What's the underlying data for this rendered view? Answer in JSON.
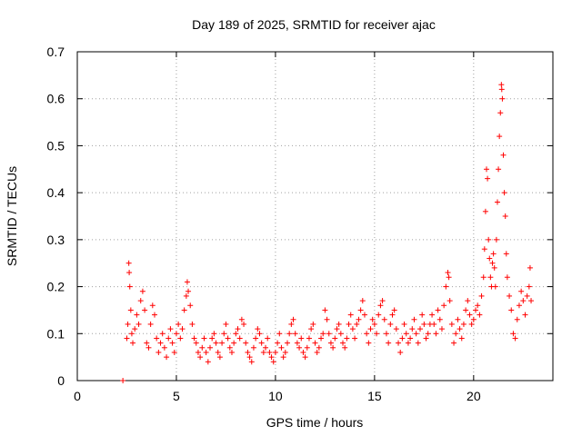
{
  "chart_data": {
    "type": "scatter",
    "title": "Day 189 of 2025, SRMTID for receiver ajac",
    "xlabel": "GPS time / hours",
    "ylabel": "SRMTID / TECUs",
    "xlim": [
      0,
      24
    ],
    "ylim": [
      0,
      0.7
    ],
    "xticks": [
      0,
      5,
      10,
      15,
      20
    ],
    "yticks": [
      0,
      0.1,
      0.2,
      0.3,
      0.4,
      0.5,
      0.6,
      0.7
    ],
    "xtick_labels": [
      "0",
      "5",
      "10",
      "15",
      "20"
    ],
    "ytick_labels": [
      "0",
      "0.1",
      "0.2",
      "0.3",
      "0.4",
      "0.5",
      "0.6",
      "0.7"
    ],
    "grid": true,
    "marker": "plus",
    "series": [
      {
        "name": "SRMTID",
        "color": "#ff0000",
        "points": [
          [
            2.3,
            0.0
          ],
          [
            2.5,
            0.09
          ],
          [
            2.55,
            0.12
          ],
          [
            2.6,
            0.25
          ],
          [
            2.62,
            0.23
          ],
          [
            2.65,
            0.2
          ],
          [
            2.7,
            0.15
          ],
          [
            2.75,
            0.1
          ],
          [
            2.8,
            0.08
          ],
          [
            2.9,
            0.11
          ],
          [
            3.0,
            0.14
          ],
          [
            3.1,
            0.12
          ],
          [
            3.2,
            0.17
          ],
          [
            3.3,
            0.19
          ],
          [
            3.4,
            0.15
          ],
          [
            3.5,
            0.08
          ],
          [
            3.6,
            0.07
          ],
          [
            3.7,
            0.12
          ],
          [
            3.8,
            0.16
          ],
          [
            3.9,
            0.14
          ],
          [
            4.0,
            0.09
          ],
          [
            4.1,
            0.06
          ],
          [
            4.2,
            0.08
          ],
          [
            4.3,
            0.1
          ],
          [
            4.4,
            0.07
          ],
          [
            4.5,
            0.05
          ],
          [
            4.6,
            0.09
          ],
          [
            4.7,
            0.11
          ],
          [
            4.8,
            0.08
          ],
          [
            4.9,
            0.06
          ],
          [
            5.0,
            0.1
          ],
          [
            5.1,
            0.12
          ],
          [
            5.2,
            0.09
          ],
          [
            5.3,
            0.11
          ],
          [
            5.4,
            0.15
          ],
          [
            5.5,
            0.18
          ],
          [
            5.55,
            0.21
          ],
          [
            5.6,
            0.19
          ],
          [
            5.7,
            0.16
          ],
          [
            5.8,
            0.12
          ],
          [
            5.9,
            0.09
          ],
          [
            6.0,
            0.08
          ],
          [
            6.1,
            0.06
          ],
          [
            6.2,
            0.05
          ],
          [
            6.3,
            0.07
          ],
          [
            6.4,
            0.09
          ],
          [
            6.5,
            0.06
          ],
          [
            6.6,
            0.04
          ],
          [
            6.7,
            0.07
          ],
          [
            6.8,
            0.09
          ],
          [
            6.9,
            0.1
          ],
          [
            7.0,
            0.08
          ],
          [
            7.1,
            0.06
          ],
          [
            7.2,
            0.05
          ],
          [
            7.3,
            0.08
          ],
          [
            7.4,
            0.1
          ],
          [
            7.5,
            0.12
          ],
          [
            7.6,
            0.09
          ],
          [
            7.7,
            0.07
          ],
          [
            7.8,
            0.06
          ],
          [
            7.9,
            0.08
          ],
          [
            8.0,
            0.1
          ],
          [
            8.1,
            0.11
          ],
          [
            8.2,
            0.09
          ],
          [
            8.3,
            0.13
          ],
          [
            8.4,
            0.12
          ],
          [
            8.5,
            0.08
          ],
          [
            8.6,
            0.06
          ],
          [
            8.7,
            0.05
          ],
          [
            8.8,
            0.04
          ],
          [
            8.9,
            0.07
          ],
          [
            9.0,
            0.09
          ],
          [
            9.1,
            0.11
          ],
          [
            9.2,
            0.1
          ],
          [
            9.3,
            0.08
          ],
          [
            9.4,
            0.06
          ],
          [
            9.5,
            0.07
          ],
          [
            9.6,
            0.09
          ],
          [
            9.7,
            0.06
          ],
          [
            9.8,
            0.05
          ],
          [
            9.9,
            0.04
          ],
          [
            10.0,
            0.06
          ],
          [
            10.1,
            0.08
          ],
          [
            10.2,
            0.1
          ],
          [
            10.3,
            0.07
          ],
          [
            10.4,
            0.05
          ],
          [
            10.5,
            0.06
          ],
          [
            10.6,
            0.08
          ],
          [
            10.7,
            0.1
          ],
          [
            10.8,
            0.12
          ],
          [
            10.9,
            0.13
          ],
          [
            11.0,
            0.1
          ],
          [
            11.1,
            0.08
          ],
          [
            11.2,
            0.07
          ],
          [
            11.3,
            0.09
          ],
          [
            11.4,
            0.06
          ],
          [
            11.5,
            0.05
          ],
          [
            11.6,
            0.07
          ],
          [
            11.7,
            0.09
          ],
          [
            11.8,
            0.11
          ],
          [
            11.9,
            0.12
          ],
          [
            12.0,
            0.08
          ],
          [
            12.1,
            0.06
          ],
          [
            12.2,
            0.07
          ],
          [
            12.3,
            0.09
          ],
          [
            12.4,
            0.1
          ],
          [
            12.5,
            0.15
          ],
          [
            12.6,
            0.13
          ],
          [
            12.7,
            0.1
          ],
          [
            12.8,
            0.08
          ],
          [
            12.9,
            0.07
          ],
          [
            13.0,
            0.09
          ],
          [
            13.1,
            0.11
          ],
          [
            13.2,
            0.12
          ],
          [
            13.3,
            0.1
          ],
          [
            13.4,
            0.08
          ],
          [
            13.5,
            0.07
          ],
          [
            13.6,
            0.09
          ],
          [
            13.7,
            0.12
          ],
          [
            13.8,
            0.14
          ],
          [
            13.9,
            0.11
          ],
          [
            14.0,
            0.09
          ],
          [
            14.1,
            0.12
          ],
          [
            14.2,
            0.13
          ],
          [
            14.3,
            0.15
          ],
          [
            14.4,
            0.17
          ],
          [
            14.5,
            0.14
          ],
          [
            14.6,
            0.1
          ],
          [
            14.7,
            0.08
          ],
          [
            14.8,
            0.11
          ],
          [
            14.9,
            0.13
          ],
          [
            15.0,
            0.12
          ],
          [
            15.1,
            0.1
          ],
          [
            15.2,
            0.14
          ],
          [
            15.3,
            0.16
          ],
          [
            15.4,
            0.17
          ],
          [
            15.5,
            0.13
          ],
          [
            15.6,
            0.1
          ],
          [
            15.7,
            0.08
          ],
          [
            15.8,
            0.12
          ],
          [
            15.9,
            0.14
          ],
          [
            16.0,
            0.15
          ],
          [
            16.1,
            0.11
          ],
          [
            16.2,
            0.08
          ],
          [
            16.3,
            0.06
          ],
          [
            16.4,
            0.09
          ],
          [
            16.5,
            0.12
          ],
          [
            16.6,
            0.1
          ],
          [
            16.7,
            0.08
          ],
          [
            16.8,
            0.09
          ],
          [
            16.9,
            0.11
          ],
          [
            17.0,
            0.13
          ],
          [
            17.1,
            0.1
          ],
          [
            17.2,
            0.08
          ],
          [
            17.3,
            0.11
          ],
          [
            17.4,
            0.14
          ],
          [
            17.5,
            0.12
          ],
          [
            17.6,
            0.09
          ],
          [
            17.7,
            0.1
          ],
          [
            17.8,
            0.12
          ],
          [
            17.9,
            0.14
          ],
          [
            18.0,
            0.12
          ],
          [
            18.1,
            0.1
          ],
          [
            18.2,
            0.15
          ],
          [
            18.3,
            0.13
          ],
          [
            18.4,
            0.11
          ],
          [
            18.5,
            0.16
          ],
          [
            18.6,
            0.2
          ],
          [
            18.7,
            0.23
          ],
          [
            18.75,
            0.22
          ],
          [
            18.8,
            0.17
          ],
          [
            18.9,
            0.12
          ],
          [
            19.0,
            0.08
          ],
          [
            19.1,
            0.1
          ],
          [
            19.2,
            0.13
          ],
          [
            19.3,
            0.11
          ],
          [
            19.4,
            0.09
          ],
          [
            19.5,
            0.12
          ],
          [
            19.6,
            0.15
          ],
          [
            19.7,
            0.17
          ],
          [
            19.8,
            0.14
          ],
          [
            19.9,
            0.12
          ],
          [
            20.0,
            0.13
          ],
          [
            20.1,
            0.15
          ],
          [
            20.2,
            0.16
          ],
          [
            20.3,
            0.14
          ],
          [
            20.4,
            0.18
          ],
          [
            20.5,
            0.22
          ],
          [
            20.55,
            0.28
          ],
          [
            20.6,
            0.36
          ],
          [
            20.65,
            0.45
          ],
          [
            20.7,
            0.43
          ],
          [
            20.75,
            0.3
          ],
          [
            20.8,
            0.26
          ],
          [
            20.85,
            0.22
          ],
          [
            20.9,
            0.2
          ],
          [
            20.95,
            0.25
          ],
          [
            21.0,
            0.27
          ],
          [
            21.05,
            0.24
          ],
          [
            21.1,
            0.2
          ],
          [
            21.15,
            0.3
          ],
          [
            21.2,
            0.38
          ],
          [
            21.25,
            0.45
          ],
          [
            21.3,
            0.52
          ],
          [
            21.35,
            0.57
          ],
          [
            21.4,
            0.63
          ],
          [
            21.42,
            0.62
          ],
          [
            21.45,
            0.6
          ],
          [
            21.5,
            0.48
          ],
          [
            21.55,
            0.4
          ],
          [
            21.6,
            0.35
          ],
          [
            21.65,
            0.27
          ],
          [
            21.7,
            0.22
          ],
          [
            21.8,
            0.18
          ],
          [
            21.9,
            0.15
          ],
          [
            22.0,
            0.1
          ],
          [
            22.1,
            0.09
          ],
          [
            22.2,
            0.13
          ],
          [
            22.3,
            0.16
          ],
          [
            22.4,
            0.19
          ],
          [
            22.5,
            0.17
          ],
          [
            22.6,
            0.14
          ],
          [
            22.7,
            0.18
          ],
          [
            22.8,
            0.2
          ],
          [
            22.85,
            0.24
          ],
          [
            22.9,
            0.17
          ]
        ]
      }
    ]
  }
}
